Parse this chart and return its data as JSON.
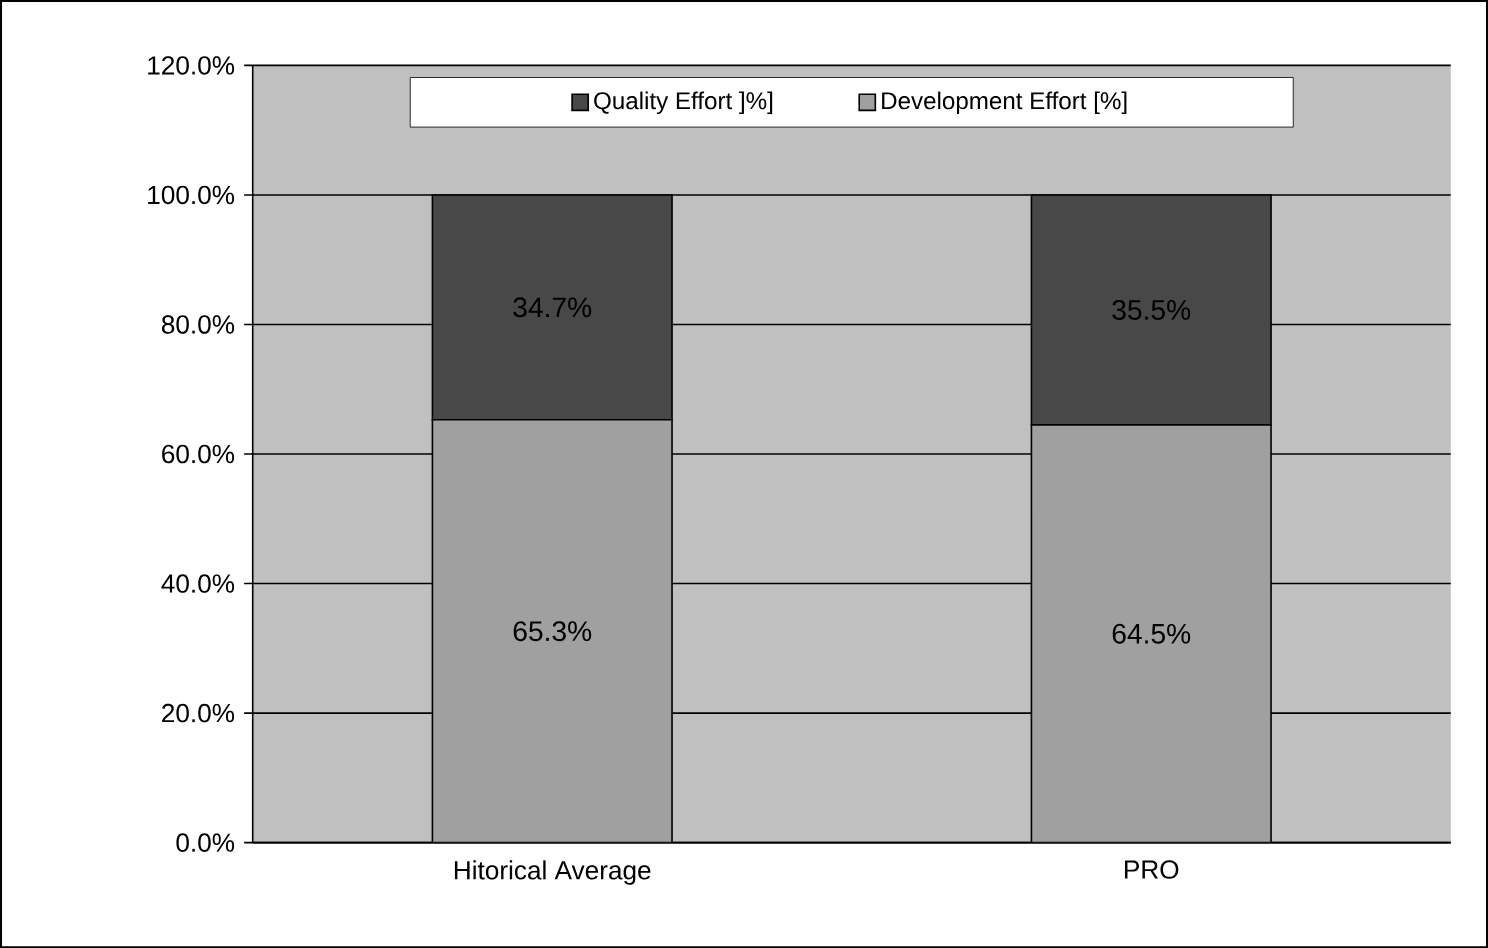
{
  "chart_data": {
    "type": "bar",
    "stacked": true,
    "categories": [
      "Hitorical Average",
      "PRO"
    ],
    "series": [
      {
        "name": "Development Effort [%]",
        "color": "#a0a0a0",
        "values": [
          65.3,
          64.5
        ],
        "value_labels": [
          "65.3%",
          "64.5%"
        ]
      },
      {
        "name": "Quality Effort ]%]",
        "color": "#484848",
        "values": [
          34.7,
          35.5
        ],
        "value_labels": [
          "34.7%",
          "35.5%"
        ]
      }
    ],
    "ylim": [
      0,
      120
    ],
    "yticks": [
      {
        "value": 0,
        "label": "0.0%"
      },
      {
        "value": 20,
        "label": "20.0%"
      },
      {
        "value": 40,
        "label": "40.0%"
      },
      {
        "value": 60,
        "label": "60.0%"
      },
      {
        "value": 80,
        "label": "80.0%"
      },
      {
        "value": 100,
        "label": "100.0%"
      },
      {
        "value": 120,
        "label": "120.0%"
      }
    ],
    "grid": "y",
    "legend": "top"
  }
}
